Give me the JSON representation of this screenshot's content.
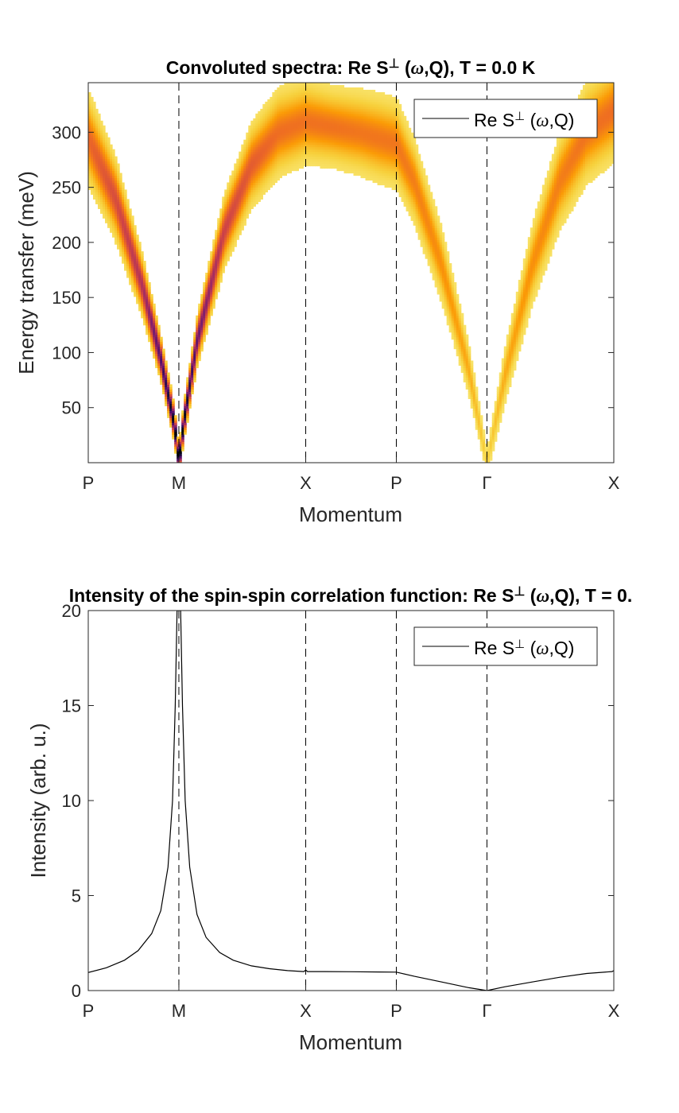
{
  "chart_data": [
    {
      "type": "heatmap",
      "title_prefix": "Convoluted spectra: Re S",
      "title_sup": "⊥",
      "title_omega": "ω",
      "title_suffix": ",Q), T =   0.0 K",
      "xlabel": "Momentum",
      "ylabel": "Energy transfer (meV)",
      "x_ticks": [
        "P",
        "M",
        "X",
        "P",
        "Γ",
        "X"
      ],
      "x_tick_positions": [
        0,
        1,
        2.4,
        3.4,
        4.4,
        5.8
      ],
      "x_range": [
        0,
        5.8
      ],
      "y_ticks": [
        50,
        100,
        150,
        200,
        250,
        300
      ],
      "ylim": [
        0,
        345
      ],
      "legend": {
        "prefix": "Re S",
        "sup": "⊥",
        "omega": "ω",
        "suffix": ",Q)",
        "placement": "top-right"
      },
      "colormap": [
        "#fafca8",
        "#f7d13d",
        "#fb9b06",
        "#ed6925",
        "#cf4446",
        "#a52c60",
        "#781c6d",
        "#4a0c6b",
        "#1b0c41",
        "#000004"
      ],
      "dispersion": {
        "x": [
          0,
          0.3,
          0.6,
          0.8,
          0.95,
          1.0,
          1.05,
          1.2,
          1.5,
          1.8,
          2.1,
          2.4,
          2.7,
          3.0,
          3.2,
          3.4,
          3.6,
          3.9,
          4.2,
          4.4,
          4.6,
          4.9,
          5.2,
          5.5,
          5.8
        ],
        "energy": [
          295,
          240,
          160,
          95,
          35,
          0,
          35,
          110,
          210,
          270,
          300,
          310,
          305,
          300,
          295,
          290,
          255,
          180,
          85,
          0,
          80,
          180,
          255,
          300,
          320
        ],
        "halfwidth": [
          45,
          40,
          30,
          22,
          18,
          16,
          18,
          24,
          35,
          40,
          42,
          40,
          38,
          40,
          42,
          42,
          40,
          35,
          24,
          12,
          26,
          38,
          45,
          48,
          48
        ],
        "peak_intensity": [
          0.3,
          0.38,
          0.5,
          0.75,
          1.0,
          1.0,
          1.0,
          0.7,
          0.42,
          0.33,
          0.28,
          0.27,
          0.27,
          0.26,
          0.26,
          0.26,
          0.24,
          0.2,
          0.14,
          0.05,
          0.14,
          0.2,
          0.24,
          0.27,
          0.28
        ]
      }
    },
    {
      "type": "line",
      "title": "Intensity of the spin-spin correlation function: Re S⊥ (ω,Q), T =   0.",
      "title_prefix": "Intensity of the spin-spin correlation function: Re S",
      "title_sup": "⊥",
      "title_omega": "ω",
      "title_suffix": ",Q), T =   0.",
      "xlabel": "Momentum",
      "ylabel": "Intensity (arb. u.)",
      "x_ticks": [
        "P",
        "M",
        "X",
        "P",
        "Γ",
        "X"
      ],
      "x_tick_positions": [
        0,
        1,
        2.4,
        3.4,
        4.4,
        5.8
      ],
      "x_range": [
        0,
        5.8
      ],
      "y_ticks": [
        0,
        5,
        10,
        15,
        20
      ],
      "ylim": [
        0,
        20
      ],
      "legend": {
        "prefix": "Re S",
        "sup": "⊥",
        "omega": "ω",
        "suffix": ",Q)",
        "placement": "top-right"
      },
      "series": [
        {
          "x": [
            0,
            0.2,
            0.4,
            0.55,
            0.7,
            0.8,
            0.88,
            0.93,
            0.96,
            0.98,
            0.99,
            1.01,
            1.02,
            1.04,
            1.07,
            1.12,
            1.2,
            1.3,
            1.45,
            1.6,
            1.8,
            2.0,
            2.2,
            2.38,
            2.4,
            2.42,
            2.6,
            2.9,
            3.2,
            3.4,
            3.6,
            3.9,
            4.2,
            4.4,
            4.6,
            4.9,
            5.2,
            5.5,
            5.78,
            5.8
          ],
          "y": [
            0.95,
            1.2,
            1.6,
            2.1,
            3.0,
            4.2,
            6.5,
            10.0,
            15.0,
            20.0,
            20.0,
            20.0,
            20.0,
            15.0,
            10.0,
            6.5,
            4.0,
            2.8,
            2.0,
            1.6,
            1.3,
            1.15,
            1.05,
            1.0,
            1.08,
            1.0,
            1.0,
            0.99,
            0.98,
            0.97,
            0.75,
            0.45,
            0.15,
            0.0,
            0.2,
            0.45,
            0.7,
            0.9,
            1.0,
            1.05
          ]
        }
      ]
    }
  ]
}
